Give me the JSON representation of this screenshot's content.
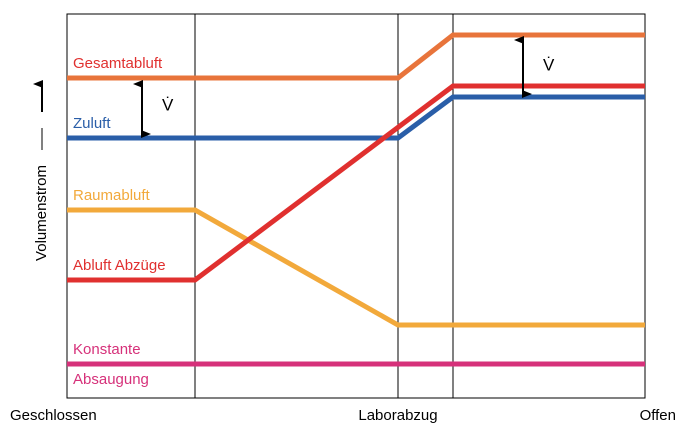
{
  "y_axis_label": "Volumenstrom",
  "x_labels": [
    "Geschlossen",
    "Laborabzug",
    "Offen"
  ],
  "curves": {
    "gesamtabluft": "Gesamtabluft",
    "zuluft": "Zuluft",
    "raumabluft": "Raumabluft",
    "abluft_abzuege": "Abluft Abzüge",
    "konstante": "Konstante",
    "absaugung": "Absaugung"
  },
  "flow_marks": [
    "V̇",
    "V̇"
  ]
}
